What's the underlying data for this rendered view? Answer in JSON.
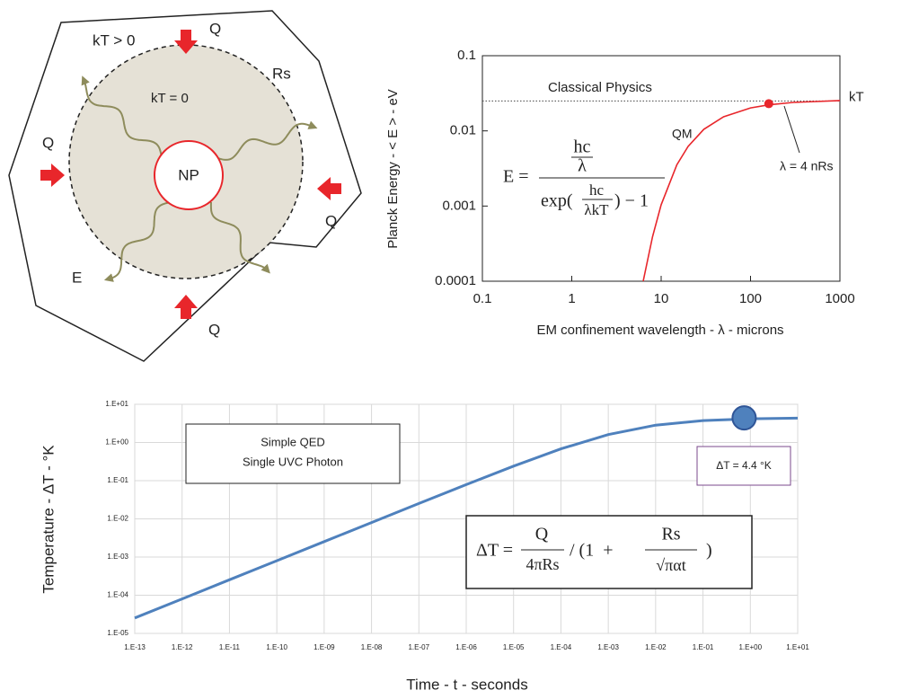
{
  "diagram": {
    "labels": [
      "kT > 0",
      "Q",
      "Rs",
      "kT = 0",
      "NP",
      "Q",
      "Q",
      "E",
      "Q"
    ]
  },
  "chart_data": [
    {
      "type": "line",
      "y_label": "Planck Energy - < E > - eV",
      "x_label": "EM confinement wavelength - λ - microns",
      "xscale": "log",
      "yscale": "log",
      "xlim": [
        0.1,
        1000
      ],
      "ylim": [
        0.0001,
        0.1
      ],
      "xticks": [
        0.1,
        1,
        10,
        100,
        1000
      ],
      "yticks": [
        0.0001,
        0.001,
        0.01,
        0.1
      ],
      "grid": false,
      "color": "#e8262b",
      "x": [
        6.3,
        8,
        10,
        15,
        20,
        30,
        50,
        100,
        160,
        300,
        1000
      ],
      "values": [
        0.0001,
        0.00039,
        0.00104,
        0.00355,
        0.0062,
        0.0105,
        0.0154,
        0.0202,
        0.0222,
        0.0239,
        0.0253
      ],
      "reference_line": {
        "y": 0.025,
        "label": "kT"
      },
      "highlight": {
        "x": 160,
        "y": 0.023
      },
      "annotations": [
        "Classical Physics",
        "QM",
        "λ = 4 nRs"
      ],
      "formula": {
        "lhs": "E =",
        "num_top": "hc",
        "num_bottom": "λ",
        "den_start": "exp(",
        "den_top": "hc",
        "den_bottom": "λkT",
        "den_end": ") − 1"
      }
    },
    {
      "type": "line",
      "y_label": "Temperature - ΔT - °K",
      "x_label": "Time - t -  seconds",
      "xscale": "log",
      "yscale": "log",
      "xlim": [
        1e-13,
        10
      ],
      "ylim": [
        1e-05,
        10
      ],
      "xticks": [
        {
          "value": 1e-13,
          "label": "1.E-13"
        },
        {
          "value": 1e-12,
          "label": "1.E-12"
        },
        {
          "value": 1e-11,
          "label": "1.E-11"
        },
        {
          "value": 1e-10,
          "label": "1.E-10"
        },
        {
          "value": 1e-09,
          "label": "1.E-09"
        },
        {
          "value": 1e-08,
          "label": "1.E-08"
        },
        {
          "value": 1e-07,
          "label": "1.E-07"
        },
        {
          "value": 1e-06,
          "label": "1.E-06"
        },
        {
          "value": 1e-05,
          "label": "1.E-05"
        },
        {
          "value": 0.0001,
          "label": "1.E-04"
        },
        {
          "value": 0.001,
          "label": "1.E-03"
        },
        {
          "value": 0.01,
          "label": "1.E-02"
        },
        {
          "value": 0.1,
          "label": "1.E-01"
        },
        {
          "value": 1,
          "label": "1.E+00"
        },
        {
          "value": 10,
          "label": "1.E+01"
        }
      ],
      "yticks": [
        {
          "value": 1e-05,
          "label": "1.E-05"
        },
        {
          "value": 0.0001,
          "label": "1.E-04"
        },
        {
          "value": 0.001,
          "label": "1.E-03"
        },
        {
          "value": 0.01,
          "label": "1.E-02"
        },
        {
          "value": 0.1,
          "label": "1.E-01"
        },
        {
          "value": 1,
          "label": "1.E+00"
        },
        {
          "value": 10,
          "label": "1.E+01"
        }
      ],
      "grid": true,
      "color": "#4f81bd",
      "x": [
        1e-13,
        1e-12,
        1e-11,
        1e-10,
        1e-09,
        1e-08,
        1e-07,
        1e-06,
        1e-05,
        0.0001,
        0.001,
        0.01,
        0.1,
        1,
        10
      ],
      "values": [
        2.54e-05,
        8e-05,
        0.000254,
        0.0008,
        0.00254,
        0.008,
        0.0253,
        0.0789,
        0.24,
        0.679,
        1.61,
        2.84,
        3.75,
        4.17,
        4.33
      ],
      "highlight": {
        "x": 0.74,
        "y": 4.4
      },
      "annotations": [
        "Simple QED",
        "Single UVC Photon",
        "ΔT = 4.4 °K"
      ],
      "formula": {
        "lhs": "ΔT =",
        "q": "Q",
        "q_den": "4πRs",
        "mid": "/ (1  +",
        "rs": "Rs",
        "rs_den": "√παt",
        "end": ")"
      }
    }
  ]
}
